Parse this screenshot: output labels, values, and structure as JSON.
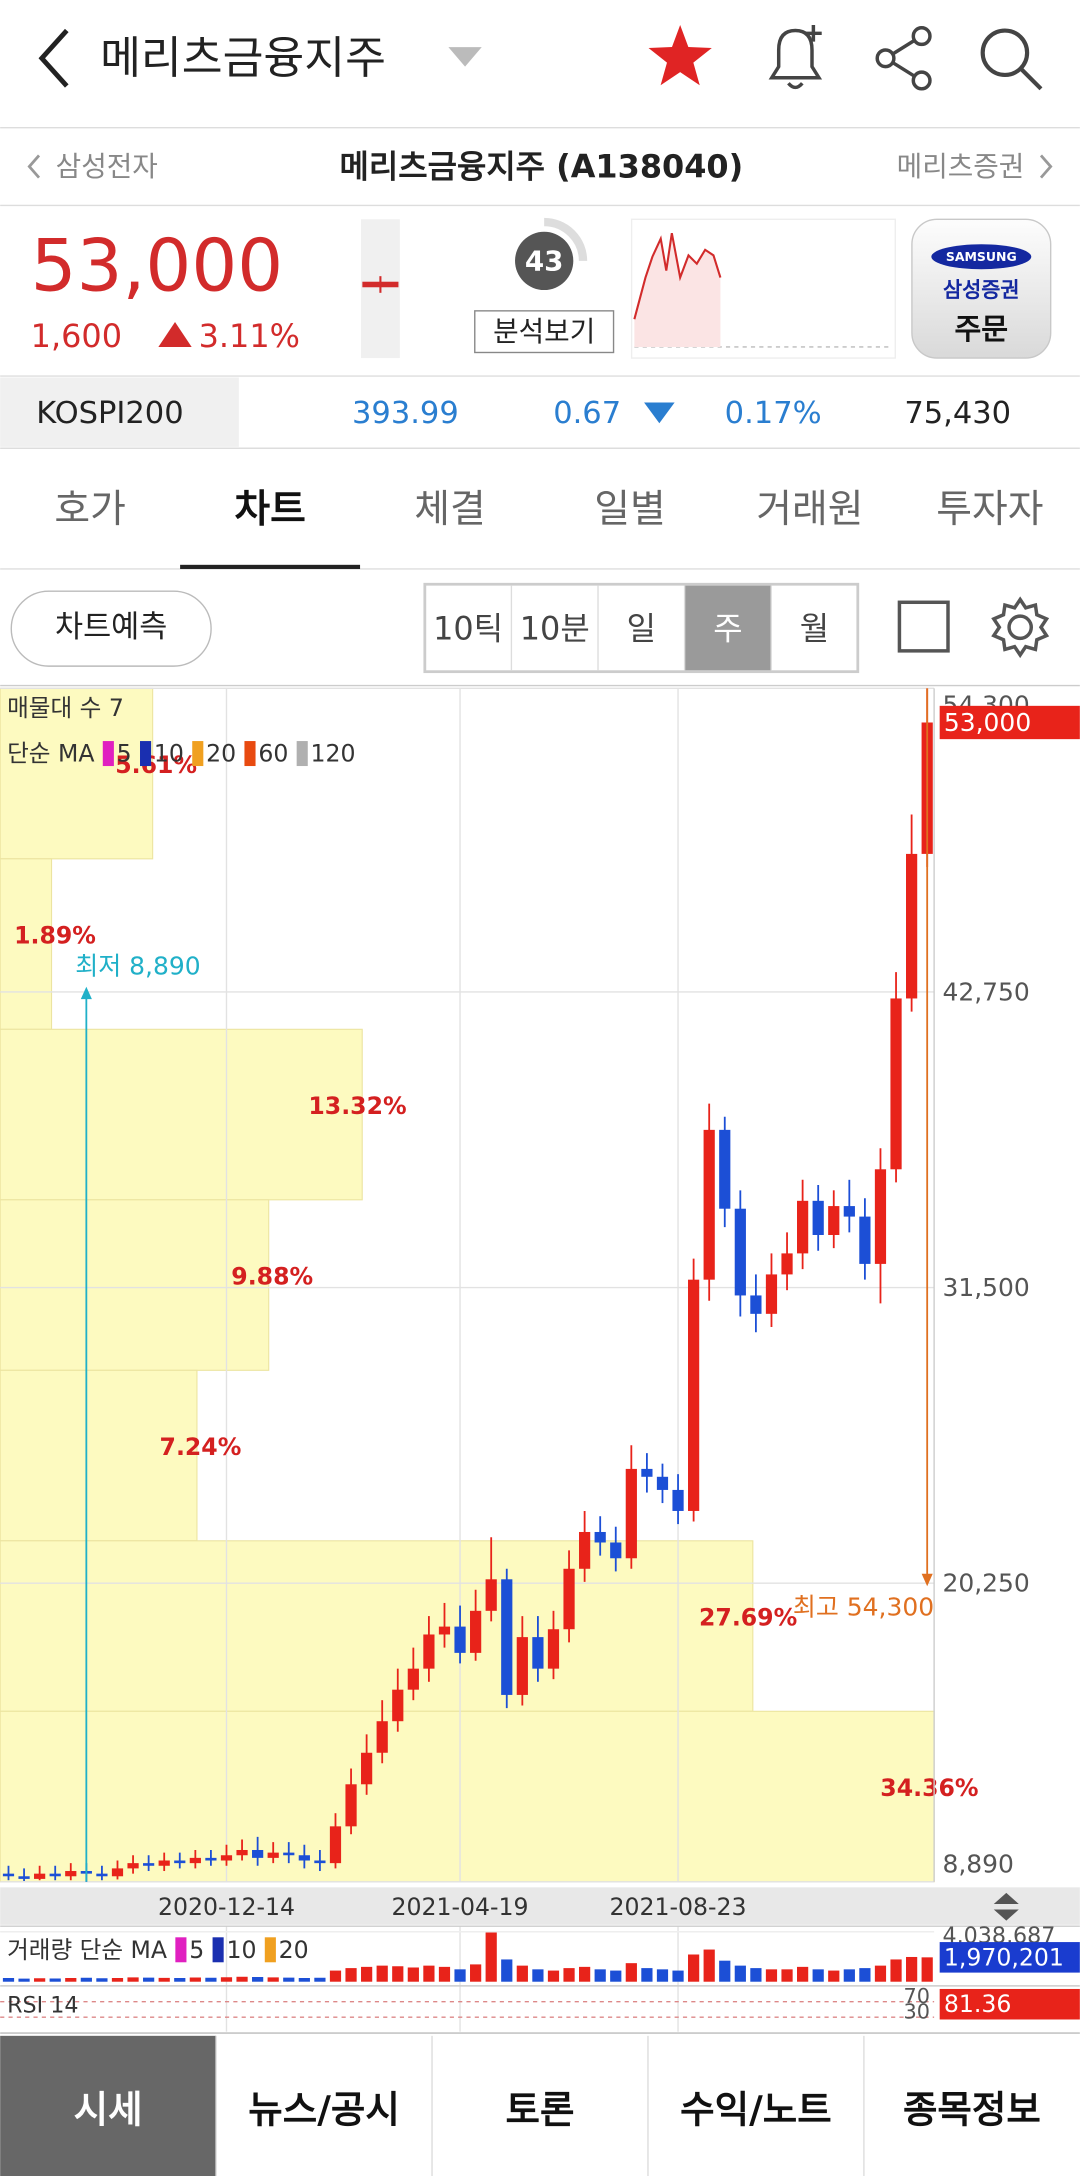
{
  "header": {
    "title": "메리츠금융지주"
  },
  "sub_header": {
    "prev": "삼성전자",
    "name": "메리츠금융지주 (A138040)",
    "next": "메리츠증권"
  },
  "quote": {
    "price": "53,000",
    "change": "1,600",
    "change_pct": "3.11%",
    "score": 43,
    "analysis_button": "분석보기",
    "broker_logo": "SAMSUNG",
    "broker": "삼성증권",
    "order": "주문"
  },
  "index_bar": {
    "name": "KOSPI200",
    "value": "393.99",
    "change": "0.67",
    "change_pct": "0.17%",
    "volume": "75,430"
  },
  "tabs": [
    "호가",
    "차트",
    "체결",
    "일별",
    "거래원",
    "투자자"
  ],
  "chart_toolbar": {
    "predict": "차트예측",
    "periods": [
      "10틱",
      "10분",
      "일",
      "주",
      "월"
    ]
  },
  "chart_data": {
    "type": "candlestick",
    "profile_title": "매물대 수 7",
    "ma_label": "단순 MA",
    "ma_periods": [
      5,
      10,
      20,
      60,
      120
    ],
    "ma_colors": [
      "#e020c0",
      "#1a2fb0",
      "#f0a020",
      "#e84a10",
      "#b0b0b0"
    ],
    "up_color": "#e8231a",
    "down_color": "#1c4fd6",
    "categories": [
      null,
      null,
      null,
      null,
      null,
      null,
      null,
      null,
      null,
      null,
      null,
      null,
      null,
      null,
      "2020-12-14",
      null,
      null,
      null,
      null,
      null,
      null,
      null,
      null,
      null,
      null,
      null,
      null,
      null,
      null,
      "2021-04-19",
      null,
      null,
      null,
      null,
      null,
      null,
      null,
      null,
      null,
      null,
      null,
      null,
      null,
      "2021-08-23",
      null,
      null,
      null,
      null,
      null,
      null,
      null,
      null,
      null,
      null,
      null,
      null,
      null,
      null,
      null,
      null
    ],
    "open": [
      9200,
      9100,
      9000,
      9200,
      9100,
      9300,
      9200,
      9100,
      9400,
      9600,
      9500,
      9700,
      9600,
      9800,
      9700,
      9900,
      10100,
      9800,
      10000,
      9900,
      9700,
      9600,
      11000,
      12600,
      13800,
      15000,
      16200,
      17000,
      18300,
      18600,
      17600,
      19200,
      20400,
      16000,
      18200,
      17000,
      18500,
      20800,
      22200,
      21800,
      21200,
      24600,
      24300,
      23800,
      23000,
      31800,
      37500,
      34500,
      31200,
      30500,
      32000,
      32800,
      34800,
      33500,
      34600,
      34200,
      32400,
      36000,
      42500,
      48000
    ],
    "high": [
      9500,
      9400,
      9500,
      9500,
      9600,
      9600,
      9500,
      9700,
      9900,
      9900,
      10000,
      10000,
      10100,
      10100,
      10300,
      10500,
      10600,
      10400,
      10400,
      10300,
      10100,
      11500,
      13200,
      14500,
      15800,
      17000,
      17800,
      19000,
      19500,
      19400,
      20000,
      22000,
      20800,
      19000,
      19000,
      19200,
      21500,
      23000,
      22800,
      22400,
      25500,
      25200,
      24800,
      24400,
      32600,
      38500,
      38000,
      35200,
      32000,
      32800,
      33600,
      35600,
      35400,
      35200,
      35600,
      34900,
      36800,
      43500,
      49500,
      54300
    ],
    "low": [
      8950,
      8920,
      8950,
      8950,
      8950,
      8890,
      8950,
      8980,
      9200,
      9300,
      9300,
      9400,
      9400,
      9500,
      9500,
      9700,
      9500,
      9600,
      9600,
      9400,
      9300,
      9400,
      10700,
      12200,
      13400,
      14600,
      15800,
      16500,
      17800,
      17200,
      17300,
      18800,
      15500,
      15600,
      16500,
      16600,
      18000,
      20300,
      21300,
      20700,
      20800,
      23700,
      23300,
      22500,
      22600,
      31000,
      33800,
      30400,
      29800,
      30000,
      31400,
      32200,
      32900,
      33000,
      33600,
      31800,
      30900,
      35500,
      42000,
      47500
    ],
    "close": [
      9100,
      9000,
      9200,
      9100,
      9300,
      9200,
      9100,
      9400,
      9600,
      9500,
      9700,
      9600,
      9800,
      9700,
      9900,
      10100,
      9800,
      10000,
      9900,
      9700,
      9600,
      11000,
      12600,
      13800,
      15000,
      16200,
      17000,
      18300,
      18600,
      17600,
      19200,
      20400,
      16000,
      18200,
      17000,
      18500,
      20800,
      22200,
      21800,
      21200,
      24600,
      24300,
      23800,
      23000,
      31800,
      37500,
      34500,
      31200,
      30500,
      32000,
      32800,
      34800,
      33500,
      34600,
      34200,
      32400,
      36000,
      42500,
      48000,
      53000
    ],
    "ylim": [
      8890,
      54300
    ],
    "yticks": [
      {
        "value": 54300,
        "label": "54,300"
      },
      {
        "value": 42750,
        "label": "42,750"
      },
      {
        "value": 31500,
        "label": "31,500"
      },
      {
        "value": 20250,
        "label": "20,250"
      },
      {
        "value": 8890,
        "label": "8,890"
      }
    ],
    "grid": true,
    "last_price": {
      "value": 53000,
      "label": "53,000"
    },
    "annotations": {
      "low": {
        "text": "최저 8,890",
        "value": 8890,
        "color": "#20b0c8"
      },
      "high": {
        "text": "최고 54,300",
        "value": 54300,
        "color": "#e07020"
      }
    },
    "profile": {
      "values": [
        5.61,
        1.89,
        13.32,
        9.88,
        7.24,
        27.69,
        34.36
      ],
      "value_labels": [
        "5.61%",
        "1.89%",
        "13.32%",
        "9.88%",
        "7.24%",
        "27.69%",
        "34.36%"
      ],
      "color": "#fdfac0"
    },
    "volume": {
      "label": "거래량 단순 MA",
      "ma_periods": [
        5,
        10,
        20
      ],
      "ma_colors": [
        "#e020c0",
        "#1a2fb0",
        "#f0a020"
      ],
      "values": [
        300000,
        250000,
        280000,
        260000,
        300000,
        320000,
        280000,
        300000,
        350000,
        330000,
        310000,
        300000,
        340000,
        320000,
        360000,
        400000,
        380000,
        350000,
        330000,
        300000,
        320000,
        900000,
        1100000,
        1200000,
        1300000,
        1250000,
        1150000,
        1300000,
        1200000,
        1000000,
        1400000,
        4038687,
        1800000,
        1300000,
        1000000,
        900000,
        1100000,
        1200000,
        1000000,
        900000,
        1500000,
        1100000,
        1000000,
        900000,
        2200000,
        2600000,
        1700000,
        1300000,
        1100000,
        1000000,
        1000000,
        1200000,
        1000000,
        900000,
        1000000,
        1100000,
        1300000,
        1800000,
        2000000,
        1970201
      ],
      "ylim": [
        0,
        4038687
      ],
      "yticks": [
        {
          "value": 4038687,
          "label": "4,038,687"
        }
      ],
      "last": {
        "value": 1970201,
        "label": "1,970,201"
      }
    },
    "rsi": {
      "label": "RSI 14",
      "ylim": [
        0,
        100
      ],
      "yticks": [
        70,
        30
      ],
      "last": 81.36
    }
  },
  "bottom_nav": [
    "시세",
    "뉴스/공시",
    "토론",
    "수익/노트",
    "종목정보"
  ]
}
